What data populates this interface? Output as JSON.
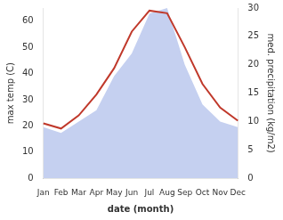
{
  "chart_data": {
    "type": "line",
    "categories": [
      "Jan",
      "Feb",
      "Mar",
      "Apr",
      "May",
      "Jun",
      "Jul",
      "Aug",
      "Sep",
      "Oct",
      "Nov",
      "Dec"
    ],
    "xlabel": "date (month)",
    "ylabel": "max temp (C)",
    "y2label": "med. precipitation (kg/m2)",
    "series": [
      {
        "type": "area",
        "color": "#c5d0f0",
        "axis": "y2",
        "values": [
          9,
          8,
          10,
          12,
          18,
          22,
          29,
          30,
          20,
          13,
          10,
          9
        ]
      },
      {
        "type": "line",
        "color": "#c0392b",
        "values": [
          21,
          19,
          24,
          32,
          42,
          56,
          64,
          63,
          50,
          36,
          27,
          22
        ]
      }
    ],
    "ylim": [
      0,
      65
    ],
    "yticks": [
      0,
      10,
      20,
      30,
      40,
      50,
      60
    ],
    "y2lim": [
      0,
      30
    ],
    "y2ticks": [
      0,
      5,
      10,
      15,
      20,
      25,
      30
    ],
    "grid": false
  }
}
